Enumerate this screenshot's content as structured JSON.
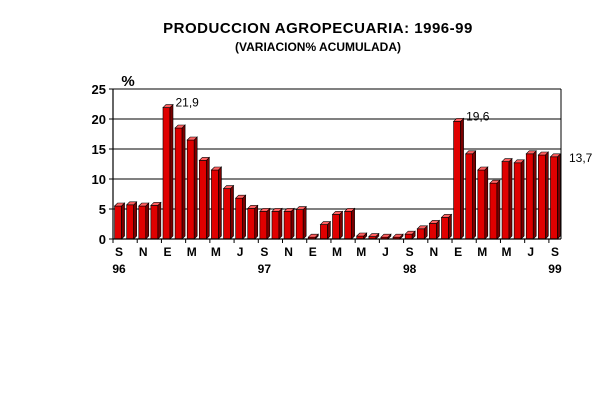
{
  "chart_data": {
    "type": "bar",
    "title": "PRODUCCION AGROPECUARIA: 1996-99",
    "subtitle": "(VARIACION% ACUMULADA)",
    "ylabel": "%",
    "xlabel": "",
    "ylim": [
      0,
      25
    ],
    "yticks": [
      "0",
      "5",
      "10",
      "15",
      "20",
      "25"
    ],
    "grid": "horizontal",
    "bar_color": "#e00000",
    "x_month_labels": [
      {
        "index": 0,
        "label": "S"
      },
      {
        "index": 2,
        "label": "N"
      },
      {
        "index": 4,
        "label": "E"
      },
      {
        "index": 6,
        "label": "M"
      },
      {
        "index": 8,
        "label": "M"
      },
      {
        "index": 10,
        "label": "J"
      },
      {
        "index": 12,
        "label": "S"
      },
      {
        "index": 14,
        "label": "N"
      },
      {
        "index": 16,
        "label": "E"
      },
      {
        "index": 18,
        "label": "M"
      },
      {
        "index": 20,
        "label": "M"
      },
      {
        "index": 22,
        "label": "J"
      },
      {
        "index": 24,
        "label": "S"
      },
      {
        "index": 26,
        "label": "N"
      },
      {
        "index": 28,
        "label": "E"
      },
      {
        "index": 30,
        "label": "M"
      },
      {
        "index": 32,
        "label": "M"
      },
      {
        "index": 34,
        "label": "J"
      },
      {
        "index": 36,
        "label": "S"
      }
    ],
    "x_year_labels": [
      {
        "index": 0,
        "label": "96"
      },
      {
        "index": 12,
        "label": "97"
      },
      {
        "index": 24,
        "label": "98"
      },
      {
        "index": 36,
        "label": "99"
      }
    ],
    "values": [
      5.5,
      5.7,
      5.5,
      5.6,
      21.9,
      18.5,
      16.5,
      13.1,
      11.5,
      8.4,
      6.8,
      5.1,
      4.6,
      4.6,
      4.6,
      4.9,
      0.3,
      2.4,
      4.1,
      4.6,
      0.5,
      0.4,
      0.3,
      0.3,
      0.8,
      1.7,
      2.6,
      3.6,
      19.6,
      14.2,
      11.5,
      9.3,
      12.9,
      12.7,
      14.2,
      14.0,
      13.7
    ],
    "annotations": [
      {
        "index": 4,
        "text": "21,9"
      },
      {
        "index": 28,
        "text": "19,6"
      },
      {
        "index": 36,
        "text": "13,7"
      }
    ]
  }
}
